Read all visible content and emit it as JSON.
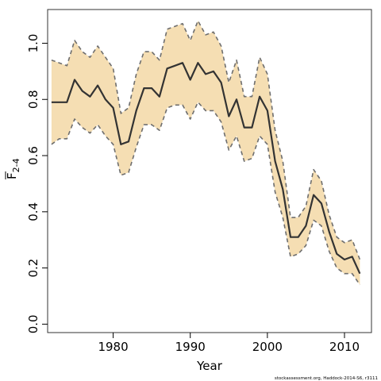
{
  "chart_data": {
    "type": "area",
    "xlabel": "Year",
    "ylabel": "F",
    "ylabel_subscript": "2-4",
    "xlim": [
      1971.5,
      2013.5
    ],
    "ylim": [
      -0.03,
      1.12
    ],
    "xticks": [
      1980,
      1990,
      2000,
      2010
    ],
    "yticks": [
      0.0,
      0.2,
      0.4,
      0.6,
      0.8,
      1.0
    ],
    "ytick_labels": [
      "0.0",
      "0.2",
      "0.4",
      "0.6",
      "0.8",
      "1.0"
    ],
    "fill_color": "#f5deb3",
    "line_color": "#333333",
    "bound_color": "#6e6e6e",
    "x": [
      1972,
      1973,
      1974,
      1975,
      1976,
      1977,
      1978,
      1979,
      1980,
      1981,
      1982,
      1983,
      1984,
      1985,
      1986,
      1987,
      1988,
      1989,
      1990,
      1991,
      1992,
      1993,
      1994,
      1995,
      1996,
      1997,
      1998,
      1999,
      2000,
      2001,
      2002,
      2003,
      2004,
      2005,
      2006,
      2007,
      2008,
      2009,
      2010,
      2011,
      2012
    ],
    "series": [
      {
        "role": "estimate",
        "values": [
          0.79,
          0.79,
          0.79,
          0.87,
          0.83,
          0.81,
          0.85,
          0.8,
          0.77,
          0.64,
          0.65,
          0.76,
          0.84,
          0.84,
          0.81,
          0.91,
          0.92,
          0.93,
          0.87,
          0.93,
          0.89,
          0.9,
          0.86,
          0.74,
          0.8,
          0.7,
          0.7,
          0.81,
          0.76,
          0.58,
          0.48,
          0.31,
          0.31,
          0.35,
          0.46,
          0.43,
          0.33,
          0.25,
          0.23,
          0.24,
          0.18
        ]
      },
      {
        "role": "upper",
        "values": [
          0.94,
          0.93,
          0.92,
          1.01,
          0.97,
          0.95,
          0.99,
          0.95,
          0.91,
          0.75,
          0.77,
          0.89,
          0.97,
          0.97,
          0.94,
          1.05,
          1.06,
          1.07,
          1.01,
          1.08,
          1.03,
          1.04,
          0.99,
          0.86,
          0.94,
          0.81,
          0.81,
          0.95,
          0.89,
          0.69,
          0.58,
          0.38,
          0.38,
          0.42,
          0.55,
          0.51,
          0.39,
          0.31,
          0.29,
          0.3,
          0.23
        ]
      },
      {
        "role": "lower",
        "values": [
          0.64,
          0.66,
          0.66,
          0.73,
          0.7,
          0.68,
          0.71,
          0.67,
          0.64,
          0.53,
          0.54,
          0.63,
          0.71,
          0.71,
          0.69,
          0.77,
          0.78,
          0.78,
          0.73,
          0.79,
          0.76,
          0.76,
          0.72,
          0.62,
          0.67,
          0.58,
          0.59,
          0.67,
          0.64,
          0.47,
          0.38,
          0.24,
          0.25,
          0.28,
          0.37,
          0.35,
          0.26,
          0.2,
          0.18,
          0.18,
          0.14
        ]
      }
    ],
    "credit": "stockassessment.org, Haddock-2014-S6, r3111"
  }
}
